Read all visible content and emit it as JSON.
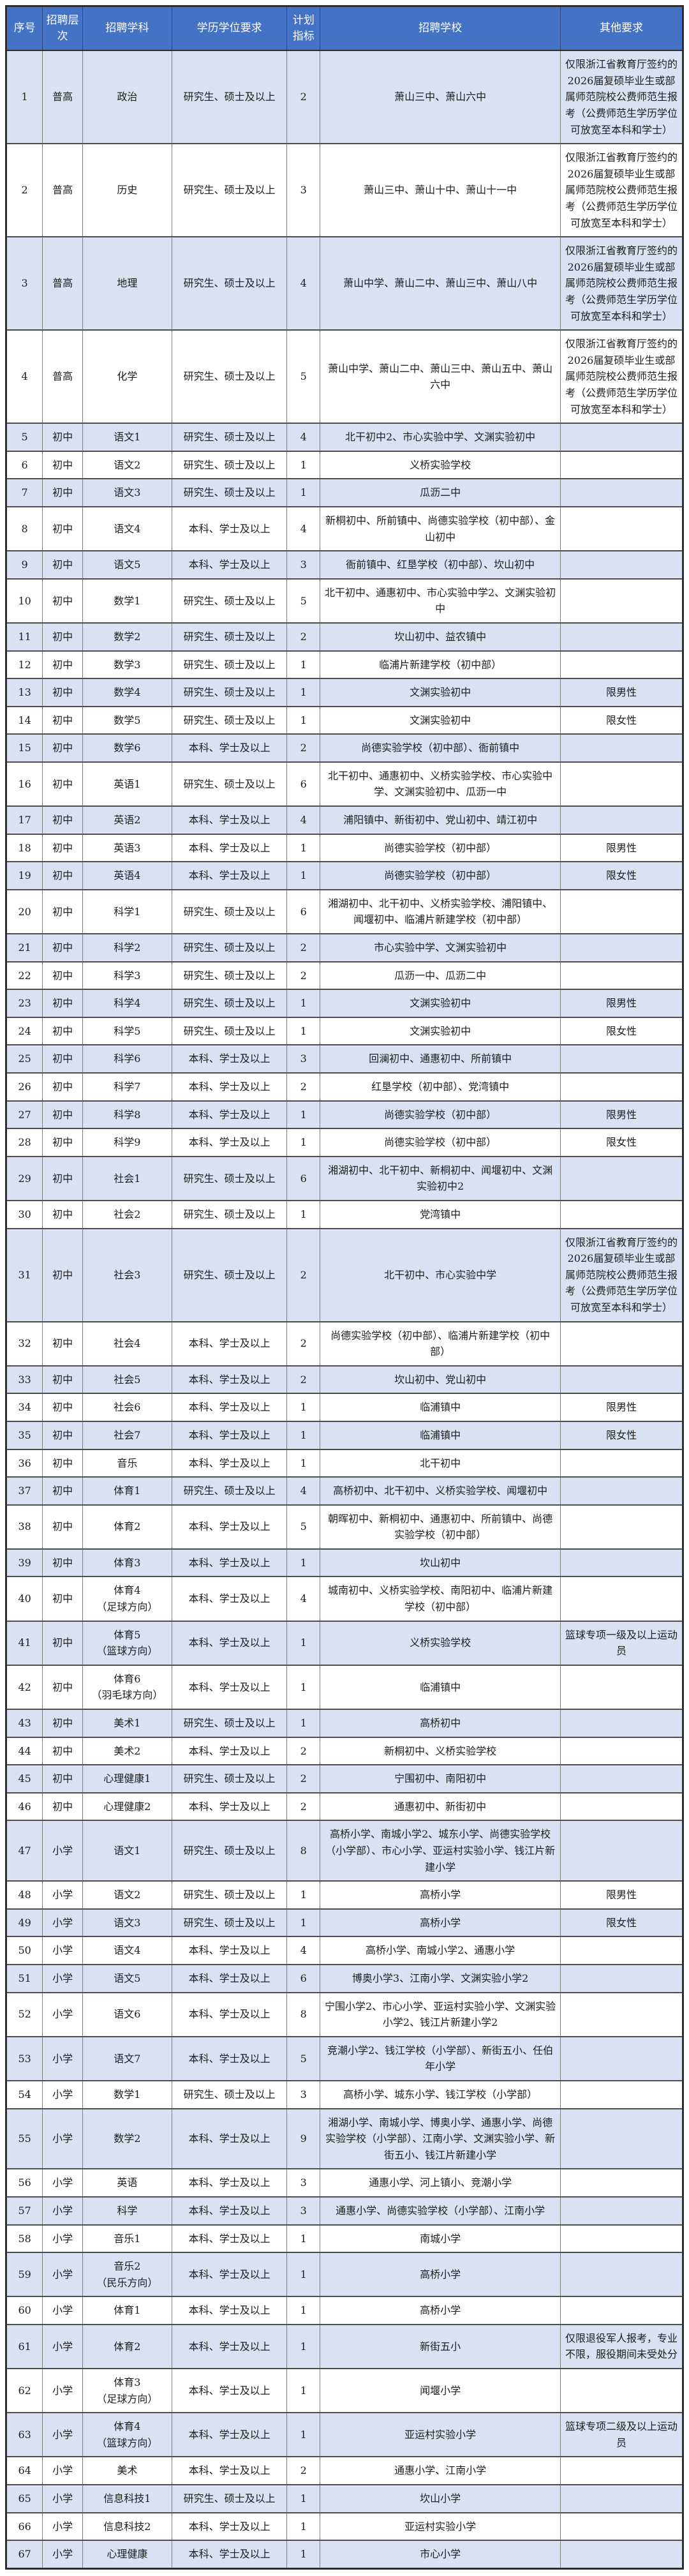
{
  "table": {
    "headers": [
      "序号",
      "招聘层次",
      "招聘学科",
      "学历学位要求",
      "计划指标",
      "招聘学校",
      "其他要求"
    ],
    "colors": {
      "header_bg": "#4472C4",
      "header_text": "#ffffff",
      "row_alt_bg": "#D9E1F2",
      "row_bg": "#ffffff",
      "border_dark": "#4d4d4d",
      "border_light": "#7f7f7f",
      "text": "#1c1c1c"
    },
    "notes": {
      "fushuo": "仅限浙江省教育厅签约的2026届复硕毕业生或部属师范院校公费师范生报考（公费师范生学历学位可放宽至本科和学士）"
    },
    "rows": [
      [
        "1",
        "普高",
        "政治",
        "研究生、硕士及以上",
        "2",
        "萧山三中、萧山六中",
        "仅限浙江省教育厅签约的2026届复硕毕业生或部属师范院校公费师范生报考（公费师范生学历学位可放宽至本科和学士）"
      ],
      [
        "2",
        "普高",
        "历史",
        "研究生、硕士及以上",
        "3",
        "萧山三中、萧山十中、萧山十一中",
        "仅限浙江省教育厅签约的2026届复硕毕业生或部属师范院校公费师范生报考（公费师范生学历学位可放宽至本科和学士）"
      ],
      [
        "3",
        "普高",
        "地理",
        "研究生、硕士及以上",
        "4",
        "萧山中学、萧山二中、萧山三中、萧山八中",
        "仅限浙江省教育厅签约的2026届复硕毕业生或部属师范院校公费师范生报考（公费师范生学历学位可放宽至本科和学士）"
      ],
      [
        "4",
        "普高",
        "化学",
        "研究生、硕士及以上",
        "5",
        "萧山中学、萧山二中、萧山三中、萧山五中、萧山六中",
        "仅限浙江省教育厅签约的2026届复硕毕业生或部属师范院校公费师范生报考（公费师范生学历学位可放宽至本科和学士）"
      ],
      [
        "5",
        "初中",
        "语文1",
        "研究生、硕士及以上",
        "4",
        "北干初中2、市心实验中学、文渊实验初中",
        ""
      ],
      [
        "6",
        "初中",
        "语文2",
        "研究生、硕士及以上",
        "1",
        "义桥实验学校",
        ""
      ],
      [
        "7",
        "初中",
        "语文3",
        "研究生、硕士及以上",
        "1",
        "瓜沥二中",
        ""
      ],
      [
        "8",
        "初中",
        "语文4",
        "本科、学士及以上",
        "4",
        "新桐初中、所前镇中、尚德实验学校（初中部）、金山初中",
        ""
      ],
      [
        "9",
        "初中",
        "语文5",
        "本科、学士及以上",
        "3",
        "衙前镇中、红垦学校（初中部）、坎山初中",
        ""
      ],
      [
        "10",
        "初中",
        "数学1",
        "研究生、硕士及以上",
        "5",
        "北干初中、通惠初中、市心实验中学2、文渊实验初中",
        ""
      ],
      [
        "11",
        "初中",
        "数学2",
        "研究生、硕士及以上",
        "2",
        "坎山初中、益农镇中",
        ""
      ],
      [
        "12",
        "初中",
        "数学3",
        "研究生、硕士及以上",
        "1",
        "临浦片新建学校（初中部）",
        ""
      ],
      [
        "13",
        "初中",
        "数学4",
        "研究生、硕士及以上",
        "1",
        "文渊实验初中",
        "限男性"
      ],
      [
        "14",
        "初中",
        "数学5",
        "研究生、硕士及以上",
        "1",
        "文渊实验初中",
        "限女性"
      ],
      [
        "15",
        "初中",
        "数学6",
        "本科、学士及以上",
        "2",
        "尚德实验学校（初中部）、衙前镇中",
        ""
      ],
      [
        "16",
        "初中",
        "英语1",
        "研究生、硕士及以上",
        "6",
        "北干初中、通惠初中、义桥实验学校、市心实验中学、文渊实验初中、瓜沥一中",
        ""
      ],
      [
        "17",
        "初中",
        "英语2",
        "本科、学士及以上",
        "4",
        "浦阳镇中、新街初中、党山初中、靖江初中",
        ""
      ],
      [
        "18",
        "初中",
        "英语3",
        "本科、学士及以上",
        "1",
        "尚德实验学校（初中部）",
        "限男性"
      ],
      [
        "19",
        "初中",
        "英语4",
        "本科、学士及以上",
        "1",
        "尚德实验学校（初中部）",
        "限女性"
      ],
      [
        "20",
        "初中",
        "科学1",
        "研究生、硕士及以上",
        "6",
        "湘湖初中、北干初中、义桥实验学校、浦阳镇中、闻堰初中、临浦片新建学校（初中部）",
        ""
      ],
      [
        "21",
        "初中",
        "科学2",
        "研究生、硕士及以上",
        "2",
        "市心实验中学、文渊实验初中",
        ""
      ],
      [
        "22",
        "初中",
        "科学3",
        "研究生、硕士及以上",
        "2",
        "瓜沥一中、瓜沥二中",
        ""
      ],
      [
        "23",
        "初中",
        "科学4",
        "研究生、硕士及以上",
        "1",
        "文渊实验初中",
        "限男性"
      ],
      [
        "24",
        "初中",
        "科学5",
        "研究生、硕士及以上",
        "1",
        "文渊实验初中",
        "限女性"
      ],
      [
        "25",
        "初中",
        "科学6",
        "本科、学士及以上",
        "3",
        "回澜初中、通惠初中、所前镇中",
        ""
      ],
      [
        "26",
        "初中",
        "科学7",
        "本科、学士及以上",
        "2",
        "红垦学校（初中部）、党湾镇中",
        ""
      ],
      [
        "27",
        "初中",
        "科学8",
        "本科、学士及以上",
        "1",
        "尚德实验学校（初中部）",
        "限男性"
      ],
      [
        "28",
        "初中",
        "科学9",
        "本科、学士及以上",
        "1",
        "尚德实验学校（初中部）",
        "限女性"
      ],
      [
        "29",
        "初中",
        "社会1",
        "研究生、硕士及以上",
        "6",
        "湘湖初中、北干初中、新桐初中、闻堰初中、文渊实验初中2",
        ""
      ],
      [
        "30",
        "初中",
        "社会2",
        "研究生、硕士及以上",
        "1",
        "党湾镇中",
        ""
      ],
      [
        "31",
        "初中",
        "社会3",
        "研究生、硕士及以上",
        "2",
        "北干初中、市心实验中学",
        "仅限浙江省教育厅签约的2026届复硕毕业生或部属师范院校公费师范生报考（公费师范生学历学位可放宽至本科和学士）"
      ],
      [
        "32",
        "初中",
        "社会4",
        "本科、学士及以上",
        "2",
        "尚德实验学校（初中部）、临浦片新建学校（初中部）",
        ""
      ],
      [
        "33",
        "初中",
        "社会5",
        "本科、学士及以上",
        "2",
        "坎山初中、党山初中",
        ""
      ],
      [
        "34",
        "初中",
        "社会6",
        "本科、学士及以上",
        "1",
        "临浦镇中",
        "限男性"
      ],
      [
        "35",
        "初中",
        "社会7",
        "本科、学士及以上",
        "1",
        "临浦镇中",
        "限女性"
      ],
      [
        "36",
        "初中",
        "音乐",
        "本科、学士及以上",
        "1",
        "北干初中",
        ""
      ],
      [
        "37",
        "初中",
        "体育1",
        "研究生、硕士及以上",
        "4",
        "高桥初中、北干初中、义桥实验学校、闻堰初中",
        ""
      ],
      [
        "38",
        "初中",
        "体育2",
        "本科、学士及以上",
        "5",
        "朝晖初中、新桐初中、通惠初中、所前镇中、尚德实验学校（初中部）",
        ""
      ],
      [
        "39",
        "初中",
        "体育3",
        "本科、学士及以上",
        "1",
        "坎山初中",
        ""
      ],
      [
        "40",
        "初中",
        "体育4\n（足球方向）",
        "本科、学士及以上",
        "4",
        "城南初中、义桥实验学校、南阳初中、临浦片新建学校（初中部）",
        ""
      ],
      [
        "41",
        "初中",
        "体育5\n（篮球方向）",
        "本科、学士及以上",
        "1",
        "义桥实验学校",
        "篮球专项一级及以上运动员"
      ],
      [
        "42",
        "初中",
        "体育6\n（羽毛球方向）",
        "本科、学士及以上",
        "1",
        "临浦镇中",
        ""
      ],
      [
        "43",
        "初中",
        "美术1",
        "研究生、硕士及以上",
        "1",
        "高桥初中",
        ""
      ],
      [
        "44",
        "初中",
        "美术2",
        "本科、学士及以上",
        "2",
        "新桐初中、义桥实验学校",
        ""
      ],
      [
        "45",
        "初中",
        "心理健康1",
        "研究生、硕士及以上",
        "2",
        "宁围初中、南阳初中",
        ""
      ],
      [
        "46",
        "初中",
        "心理健康2",
        "本科、学士及以上",
        "2",
        "通惠初中、新街初中",
        ""
      ],
      [
        "47",
        "小学",
        "语文1",
        "研究生、硕士及以上",
        "8",
        "高桥小学、南城小学2、城东小学、尚德实验学校（小学部）、市心小学、亚运村实验小学、钱江片新建小学",
        ""
      ],
      [
        "48",
        "小学",
        "语文2",
        "研究生、硕士及以上",
        "1",
        "高桥小学",
        "限男性"
      ],
      [
        "49",
        "小学",
        "语文3",
        "研究生、硕士及以上",
        "1",
        "高桥小学",
        "限女性"
      ],
      [
        "50",
        "小学",
        "语文4",
        "本科、学士及以上",
        "4",
        "高桥小学、南城小学2、通惠小学",
        ""
      ],
      [
        "51",
        "小学",
        "语文5",
        "本科、学士及以上",
        "6",
        "博奥小学3、江南小学、文渊实验小学2",
        ""
      ],
      [
        "52",
        "小学",
        "语文6",
        "本科、学士及以上",
        "8",
        "宁围小学2、市心小学、亚运村实验小学、文渊实验小学2、钱江片新建小学2",
        ""
      ],
      [
        "53",
        "小学",
        "语文7",
        "本科、学士及以上",
        "5",
        "竞潮小学2、钱江学校（小学部）、新街五小、任伯年小学",
        ""
      ],
      [
        "54",
        "小学",
        "数学1",
        "研究生、硕士及以上",
        "3",
        "高桥小学、城东小学、钱江学校（小学部）",
        ""
      ],
      [
        "55",
        "小学",
        "数学2",
        "本科、学士及以上",
        "9",
        "湘湖小学、南城小学、博奥小学、通惠小学、尚德实验学校（小学部）、江南小学、文渊实验小学、新街五小、钱江片新建小学",
        ""
      ],
      [
        "56",
        "小学",
        "英语",
        "本科、学士及以上",
        "3",
        "通惠小学、河上镇小、竞潮小学",
        ""
      ],
      [
        "57",
        "小学",
        "科学",
        "本科、学士及以上",
        "3",
        "通惠小学、尚德实验学校（小学部）、江南小学",
        ""
      ],
      [
        "58",
        "小学",
        "音乐1",
        "本科、学士及以上",
        "1",
        "南城小学",
        ""
      ],
      [
        "59",
        "小学",
        "音乐2\n（民乐方向）",
        "本科、学士及以上",
        "1",
        "高桥小学",
        ""
      ],
      [
        "60",
        "小学",
        "体育1",
        "本科、学士及以上",
        "1",
        "高桥小学",
        ""
      ],
      [
        "61",
        "小学",
        "体育2",
        "本科、学士及以上",
        "1",
        "新街五小",
        "仅限退役军人报考，专业不限，服役期间未受处分"
      ],
      [
        "62",
        "小学",
        "体育3\n（足球方向）",
        "本科、学士及以上",
        "1",
        "闻堰小学",
        ""
      ],
      [
        "63",
        "小学",
        "体育4\n（篮球方向）",
        "本科、学士及以上",
        "1",
        "亚运村实验小学",
        "篮球专项二级及以上运动员"
      ],
      [
        "64",
        "小学",
        "美术",
        "本科、学士及以上",
        "2",
        "通惠小学、江南小学",
        ""
      ],
      [
        "65",
        "小学",
        "信息科技1",
        "研究生、硕士及以上",
        "1",
        "坎山小学",
        ""
      ],
      [
        "66",
        "小学",
        "信息科技2",
        "本科、学士及以上",
        "1",
        "亚运村实验小学",
        ""
      ],
      [
        "67",
        "小学",
        "心理健康",
        "本科、学士及以上",
        "1",
        "市心小学",
        ""
      ]
    ]
  }
}
